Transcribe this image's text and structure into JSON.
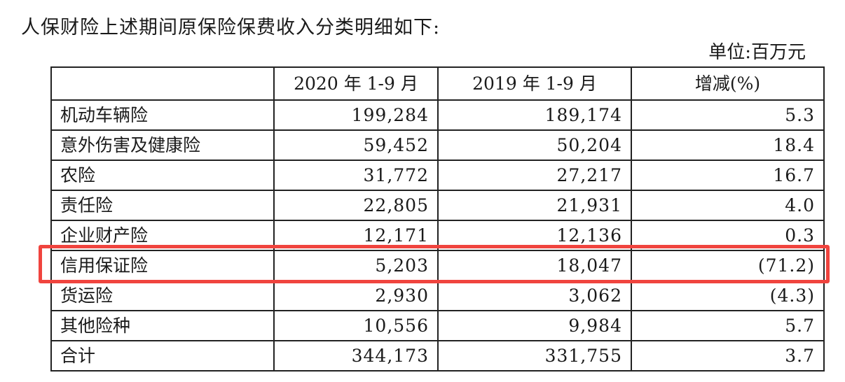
{
  "intro_text": "人保财险上述期间原保险保费收入分类明细如下:",
  "unit_text": "单位:百万元",
  "table": {
    "headers": [
      "",
      "2020 年 1-9 月",
      "2019 年 1-9 月",
      "增减(%)"
    ],
    "rows": [
      {
        "name": "机动车辆险",
        "y2020": "199,284",
        "y2019": "189,174",
        "change": "5.3"
      },
      {
        "name": "意外伤害及健康险",
        "y2020": "59,452",
        "y2019": "50,204",
        "change": "18.4"
      },
      {
        "name": "农险",
        "y2020": "31,772",
        "y2019": "27,217",
        "change": "16.7"
      },
      {
        "name": "责任险",
        "y2020": "22,805",
        "y2019": "21,931",
        "change": "4.0"
      },
      {
        "name": "企业财产险",
        "y2020": "12,171",
        "y2019": "12,136",
        "change": "0.3"
      },
      {
        "name": "信用保证险",
        "y2020": "5,203",
        "y2019": "18,047",
        "change": "(71.2)"
      },
      {
        "name": "货运险",
        "y2020": "2,930",
        "y2019": "3,062",
        "change": "(4.3)"
      },
      {
        "name": "其他险种",
        "y2020": "10,556",
        "y2019": "9,984",
        "change": "5.7"
      },
      {
        "name": "合计",
        "y2020": "344,173",
        "y2019": "331,755",
        "change": "3.7"
      }
    ]
  },
  "highlight_color": "#f0443e"
}
